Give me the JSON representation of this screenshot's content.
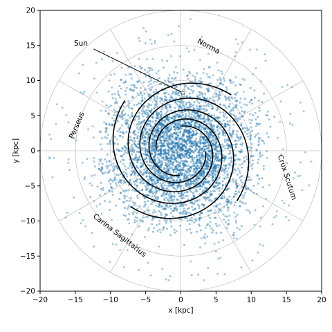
{
  "chart_data": {
    "type": "scatter",
    "title": "",
    "xlabel": "x [kpc]",
    "ylabel": "y [kpc]",
    "xlim": [
      -20,
      20
    ],
    "ylim": [
      -20,
      20
    ],
    "xticks": [
      "−20",
      "−15",
      "−10",
      "−5",
      "0",
      "5",
      "10",
      "15",
      "20"
    ],
    "yticks": [
      "−20",
      "−15",
      "−10",
      "−5",
      "0",
      "5",
      "10",
      "15",
      "20"
    ],
    "grid": "polar",
    "grid_rings_kpc": [
      5,
      10,
      15,
      20
    ],
    "grid_spokes_deg": [
      0,
      30,
      60,
      90,
      120,
      150,
      180,
      210,
      240,
      270,
      300,
      330
    ],
    "point_color": "#1f77b4",
    "arm_color": "#000000",
    "arms": [
      {
        "name": "Norma",
        "phase_deg": 88
      },
      {
        "name": "Crux Scutum",
        "phase_deg": 178
      },
      {
        "name": "Carina Sagittarius",
        "phase_deg": 268
      },
      {
        "name": "Perseus",
        "phase_deg": 358
      }
    ],
    "arm_r0_kpc": 3.5,
    "arm_growth_per_rad": 0.16,
    "arm_range_deg": [
      0,
      400
    ],
    "sun": {
      "label": "Sun",
      "x": 0,
      "y": 8.2
    }
  }
}
